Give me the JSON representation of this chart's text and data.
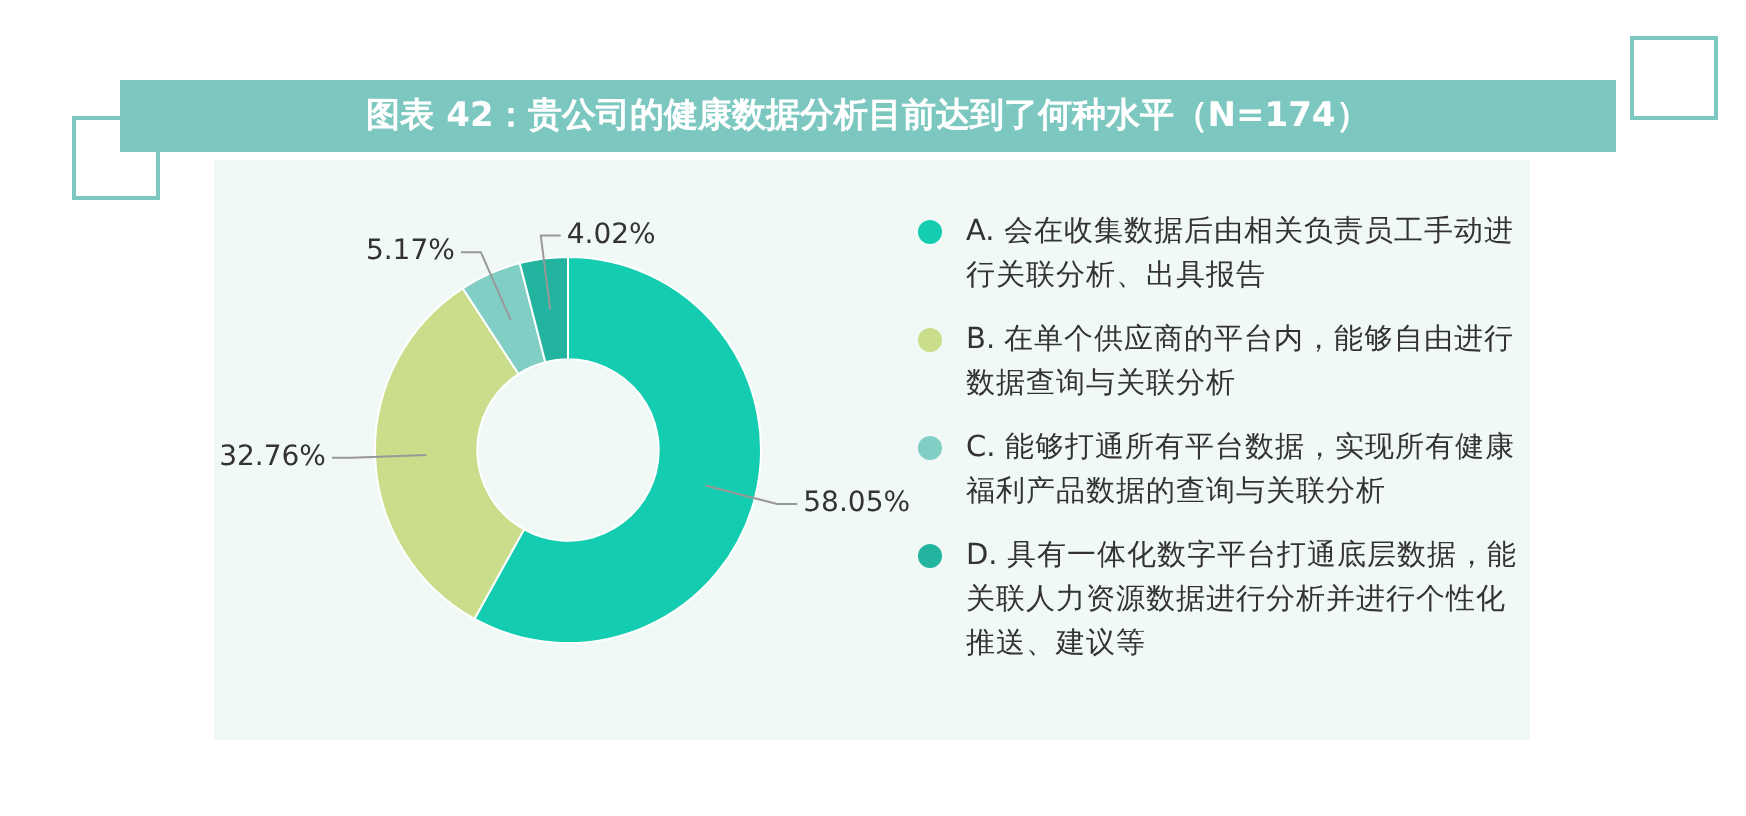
{
  "chart_data": {
    "type": "donut",
    "title": "图表 42：贵公司的健康数据分析目前达到了何种水平（N=174）",
    "categories": [
      "A. 会在收集数据后由相关负责员工手动进行关联分析、出具报告",
      "B. 在单个供应商的平台内，能够自由进行数据查询与关联分析",
      "C. 能够打通所有平台数据，实现所有健康福利产品数据的查询与关联分析",
      "D. 具有一体化数字平台打通底层数据，能关联人力资源数据进行分析并进行个性化推送、建议等"
    ],
    "values": [
      58.05,
      32.76,
      5.17,
      4.02
    ],
    "colors": [
      "#14cdb0",
      "#c9dd8a",
      "#80cec4",
      "#22b49f"
    ],
    "value_labels": [
      "58.05%",
      "32.76%",
      "5.17%",
      "4.02%"
    ],
    "legend": "right"
  }
}
